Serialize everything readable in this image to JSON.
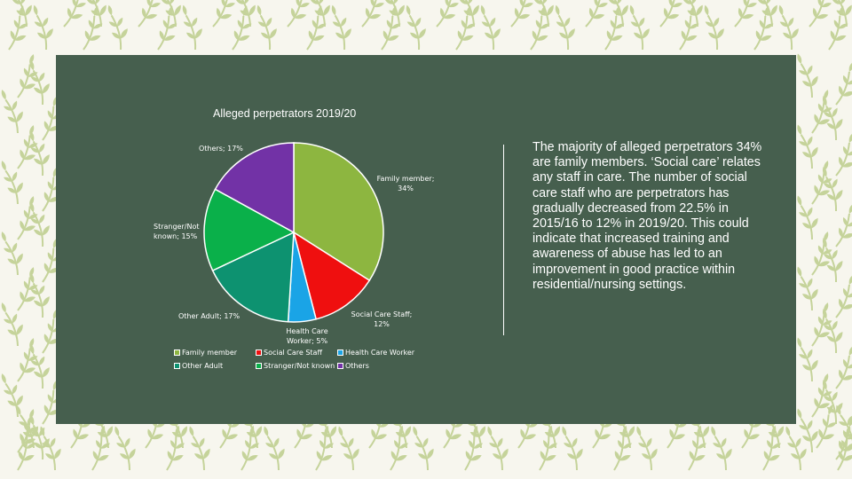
{
  "colors": {
    "page_bg": "#f7f6ee",
    "pattern_leaf": "#c5d39a",
    "panel_bg": "#465f4e",
    "text": "#ffffff"
  },
  "chart_data": {
    "type": "pie",
    "title": "Alleged perpetrators 2019/20",
    "start_angle_deg": 0,
    "direction": "clockwise",
    "slices": [
      {
        "name": "Family member",
        "value": 34,
        "label": "Family member; 34%",
        "color": "#8db640"
      },
      {
        "name": "Social Care Staff",
        "value": 12,
        "label": "Social Care Staff; 12%",
        "color": "#ef0f0f"
      },
      {
        "name": "Health Care Worker",
        "value": 5,
        "label": "Health Care Worker; 5%",
        "color": "#1aa4e6"
      },
      {
        "name": "Other Adult",
        "value": 17,
        "label": "Other Adult; 17%",
        "color": "#0d9270"
      },
      {
        "name": "Stranger/Not known",
        "value": 15,
        "label": "Stranger/Not known; 15%",
        "color": "#0ab04a"
      },
      {
        "name": "Others",
        "value": 17,
        "label": "Others; 17%",
        "color": "#7232a6"
      }
    ],
    "legend": [
      "Family member",
      "Social Care Staff",
      "Health Care Worker",
      "Other Adult",
      "Stranger/Not known",
      "Others"
    ],
    "legend_position": "bottom"
  },
  "text": {
    "body": "The majority of alleged perpetrators 34% are family members. ‘Social care’ relates any staff in care. The number of social care staff who are perpetrators has gradually decreased from 22.5% in 2015/16 to 12% in 2019/20. This could indicate that increased training and awareness of abuse has led to an improvement in good practice within residential/nursing settings."
  }
}
